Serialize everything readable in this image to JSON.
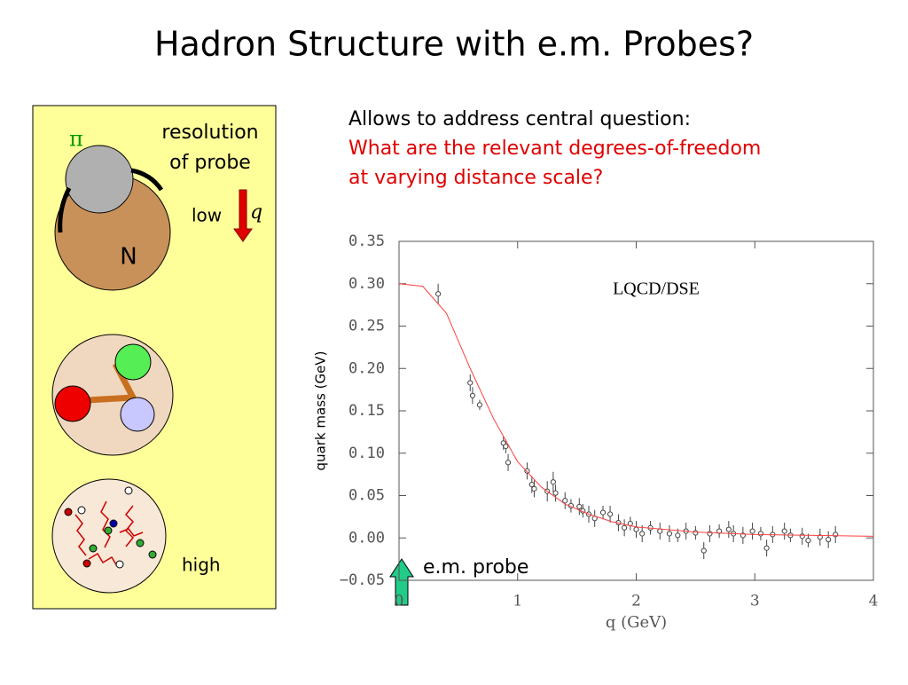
{
  "title": "Hadron Structure with e.m. Probes?",
  "text": [
    "Allows to address central question:",
    "What are the relevant degrees-of-freedom",
    "at varying distance scale?"
  ],
  "diagram": {
    "pion": "π",
    "resolution": [
      "resolution",
      "of probe"
    ],
    "low": "low",
    "q": "q",
    "nucleon": "N",
    "high": "high",
    "probe": "e.m. probe"
  },
  "chart_data": {
    "type": "scatter",
    "xlabel": "q (GeV)",
    "ylabel": "quark mass (GeV)",
    "annotation": "LQCD/DSE",
    "xlim": [
      0,
      4
    ],
    "xticks": [
      0,
      1,
      2,
      3,
      4
    ],
    "ylim": [
      -0.05,
      0.35
    ],
    "yticks": [
      {
        "value": -0.05,
        "label": "−0.05"
      },
      {
        "value": 0,
        "label": "0.00"
      },
      {
        "value": 0.05,
        "label": "0.05"
      },
      {
        "value": 0.1,
        "label": "0.10"
      },
      {
        "value": 0.15,
        "label": "0.15"
      },
      {
        "value": 0.2,
        "label": "0.20"
      },
      {
        "value": 0.25,
        "label": "0.25"
      },
      {
        "value": 0.3,
        "label": "0.30"
      },
      {
        "value": 0.35,
        "label": "0.35"
      }
    ],
    "series": [
      {
        "mode": "markers",
        "color": "#444444",
        "x": [
          0.33,
          0.6,
          0.62,
          0.68,
          0.88,
          0.9,
          0.92,
          1.08,
          1.12,
          1.14,
          1.25,
          1.3,
          1.32,
          1.4,
          1.45,
          1.52,
          1.55,
          1.6,
          1.65,
          1.72,
          1.78,
          1.85,
          1.9,
          1.95,
          2.0,
          2.05,
          2.12,
          2.2,
          2.28,
          2.35,
          2.42,
          2.5,
          2.57,
          2.62,
          2.7,
          2.78,
          2.82,
          2.9,
          2.98,
          3.05,
          3.1,
          3.15,
          3.25,
          3.3,
          3.4,
          3.45,
          3.55,
          3.62,
          3.68
        ],
        "values": [
          0.288,
          0.183,
          0.168,
          0.157,
          0.112,
          0.108,
          0.089,
          0.079,
          0.063,
          0.058,
          0.055,
          0.066,
          0.053,
          0.044,
          0.038,
          0.037,
          0.032,
          0.028,
          0.023,
          0.03,
          0.028,
          0.018,
          0.012,
          0.017,
          0.01,
          0.005,
          0.012,
          0.008,
          0.005,
          0.003,
          0.008,
          0.006,
          -0.015,
          0.005,
          0.008,
          0.01,
          0.005,
          0.003,
          0.008,
          0.005,
          -0.012,
          0.004,
          0.008,
          0.003,
          0.002,
          -0.003,
          0.001,
          -0.002,
          0.004
        ],
        "errors": [
          0.012,
          0.01,
          0.01,
          0.006,
          0.008,
          0.008,
          0.01,
          0.01,
          0.01,
          0.01,
          0.012,
          0.012,
          0.01,
          0.01,
          0.008,
          0.01,
          0.008,
          0.01,
          0.01,
          0.008,
          0.01,
          0.01,
          0.01,
          0.008,
          0.01,
          0.01,
          0.008,
          0.01,
          0.01,
          0.008,
          0.01,
          0.008,
          0.01,
          0.01,
          0.008,
          0.01,
          0.01,
          0.01,
          0.01,
          0.008,
          0.01,
          0.01,
          0.01,
          0.008,
          0.01,
          0.008,
          0.01,
          0.01,
          0.01
        ]
      },
      {
        "mode": "line",
        "color": "#ff4040",
        "x": [
          0,
          0.2,
          0.4,
          0.6,
          0.8,
          1.0,
          1.2,
          1.4,
          1.6,
          1.8,
          2.0,
          2.5,
          3.0,
          3.5,
          4.0
        ],
        "values": [
          0.3,
          0.297,
          0.265,
          0.2,
          0.14,
          0.09,
          0.06,
          0.04,
          0.028,
          0.019,
          0.013,
          0.007,
          0.004,
          0.003,
          0.002
        ]
      }
    ]
  }
}
